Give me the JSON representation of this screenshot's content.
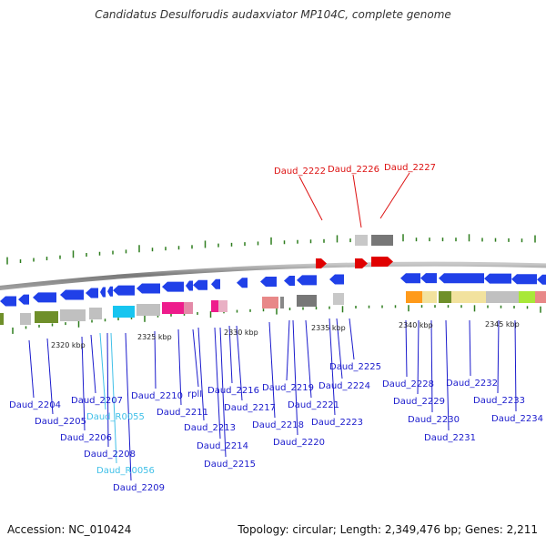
{
  "title": "Candidatus Desulforudis audaxviator MP104C, complete genome",
  "footer": {
    "accession": "Accession: NC_010424",
    "stats": "Topology: circular; Length: 2,349,476 bp; Genes: 2,211"
  },
  "colors": {
    "gene_label": "#1a1acc",
    "rna_label": "#40c0e8",
    "highlight_label": "#dd1111",
    "forward_gene": "#e00000",
    "reverse_gene": "#2040e8",
    "backbone": "#888888",
    "tick": "#2e7d1e"
  },
  "kbp_labels": [
    "2320 kbp",
    "2325 kbp",
    "2330 kbp",
    "2335 kbp",
    "2340 kbp",
    "2345 kbp"
  ],
  "gene_labels": [
    "Daud_2204",
    "Daud_2205",
    "Daud_2206",
    "Daud_2207",
    "Daud_R0055",
    "Daud_2208",
    "Daud_R0056",
    "Daud_2209",
    "Daud_2210",
    "rplI",
    "Daud_2211",
    "Daud_2213",
    "Daud_2214",
    "Daud_2215",
    "Daud_2216",
    "Daud_2217",
    "Daud_2218",
    "Daud_2219",
    "Daud_2220",
    "Daud_2221",
    "Daud_2223",
    "Daud_2224",
    "Daud_2225",
    "Daud_2228",
    "Daud_2229",
    "Daud_2230",
    "Daud_2231",
    "Daud_2232",
    "Daud_2233",
    "Daud_2234"
  ],
  "highlight_labels": [
    "Daud_2222",
    "Daud_2226",
    "Daud_2227"
  ]
}
